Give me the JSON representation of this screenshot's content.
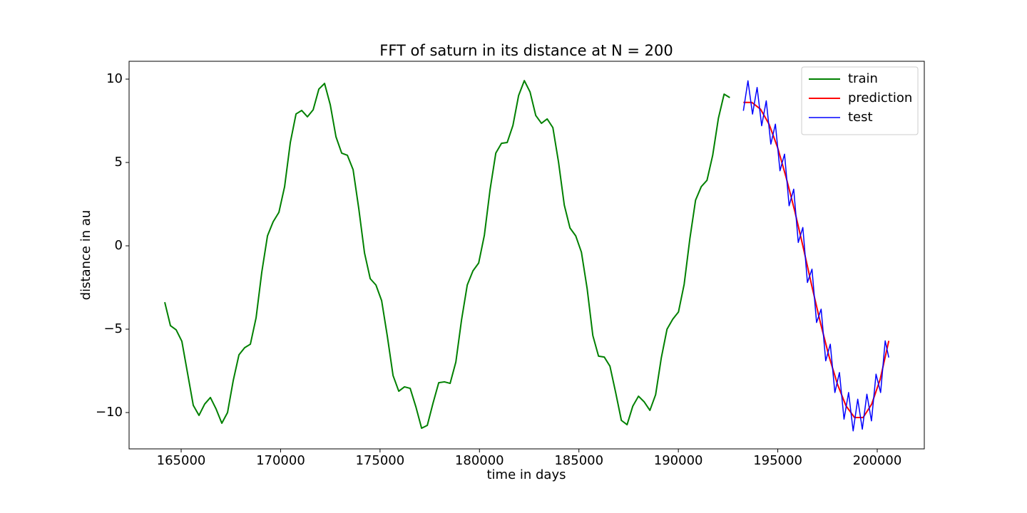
{
  "chart_data": {
    "type": "line",
    "title": "FFT of saturn in its distance at N = 200",
    "xlabel": "time in days",
    "ylabel": "distance in au",
    "xlim": [
      162382,
      202367
    ],
    "ylim": [
      -12.18,
      11.07
    ],
    "xticks": [
      165000,
      170000,
      175000,
      180000,
      185000,
      190000,
      195000,
      200000
    ],
    "yticks": [
      {
        "value": -10,
        "label": "−10"
      },
      {
        "value": -5,
        "label": "−5"
      },
      0,
      5,
      10
    ],
    "legend": "upper right",
    "series": [
      {
        "name": "train",
        "color": "#008000",
        "x": [
          164175,
          164462,
          164749,
          165036,
          165323,
          165610,
          165897,
          166184,
          166471,
          166758,
          167045,
          167332,
          167619,
          167906,
          168193,
          168480,
          168767,
          169054,
          169341,
          169628,
          169915,
          170202,
          170489,
          170776,
          171063,
          171350,
          171637,
          171924,
          172211,
          172498,
          172785,
          173072,
          173359,
          173646,
          173933,
          174220,
          174507,
          174794,
          175081,
          175368,
          175655,
          175942,
          176229,
          176516,
          176803,
          177090,
          177377,
          177664,
          177951,
          178238,
          178525,
          178812,
          179099,
          179386,
          179673,
          179960,
          180247,
          180534,
          180821,
          181108,
          181395,
          181682,
          181969,
          182256,
          182543,
          182830,
          183117,
          183404,
          183691,
          183978,
          184265,
          184552,
          184839,
          185126,
          185413,
          185700,
          185987,
          186274,
          186561,
          186848,
          187135,
          187422,
          187709,
          187996,
          188283,
          188570,
          188857,
          189144,
          189431,
          189718,
          190005,
          190292,
          190579,
          190866,
          191153,
          191440,
          191727,
          192014,
          192301,
          192588
        ],
        "values": [
          -3.38,
          -4.79,
          -5.04,
          -5.73,
          -7.65,
          -9.57,
          -10.17,
          -9.49,
          -9.1,
          -9.79,
          -10.64,
          -10.0,
          -8.08,
          -6.54,
          -6.11,
          -5.9,
          -4.32,
          -1.58,
          0.6,
          1.45,
          2.01,
          3.55,
          6.2,
          7.91,
          8.12,
          7.74,
          8.16,
          9.4,
          9.74,
          8.46,
          6.54,
          5.56,
          5.43,
          4.57,
          2.22,
          -0.43,
          -1.97,
          -2.35,
          -3.29,
          -5.43,
          -7.78,
          -8.72,
          -8.46,
          -8.55,
          -9.66,
          -10.94,
          -10.77,
          -9.44,
          -8.21,
          -8.16,
          -8.25,
          -6.97,
          -4.44,
          -2.35,
          -1.5,
          -1.03,
          0.64,
          3.38,
          5.56,
          6.15,
          6.2,
          7.22,
          9.02,
          9.91,
          9.23,
          7.82,
          7.35,
          7.61,
          7.09,
          5.0,
          2.44,
          1.07,
          0.6,
          -0.38,
          -2.56,
          -5.38,
          -6.62,
          -6.67,
          -7.22,
          -8.8,
          -10.47,
          -10.73,
          -9.62,
          -9.02,
          -9.36,
          -9.87,
          -8.93,
          -6.71,
          -5.0,
          -4.4,
          -3.97,
          -2.31,
          0.43,
          2.74,
          3.55,
          3.93,
          5.43,
          7.65,
          9.1,
          8.89
        ]
      },
      {
        "name": "prediction",
        "color": "#ff0000",
        "x": [
          193270,
          193700,
          194130,
          194560,
          194990,
          195420,
          195850,
          196280,
          196710,
          197140,
          197570,
          198000,
          198430,
          198860,
          199290,
          199720,
          200150,
          200582
        ],
        "values": [
          8.6,
          8.6,
          8.2,
          7.3,
          5.9,
          4.1,
          2.1,
          -0.1,
          -2.4,
          -4.6,
          -6.6,
          -8.3,
          -9.6,
          -10.3,
          -10.3,
          -9.5,
          -8.0,
          -5.7
        ]
      },
      {
        "name": "test",
        "color": "#0000ff",
        "x": [
          193270,
          193500,
          193730,
          193960,
          194190,
          194420,
          194650,
          194880,
          195110,
          195340,
          195570,
          195800,
          196030,
          196260,
          196490,
          196720,
          196950,
          197180,
          197410,
          197640,
          197870,
          198100,
          198330,
          198560,
          198790,
          199020,
          199250,
          199480,
          199710,
          199940,
          200170,
          200400,
          200582
        ],
        "values": [
          8.1,
          9.9,
          7.9,
          9.5,
          7.2,
          8.7,
          6.1,
          7.3,
          4.5,
          5.5,
          2.4,
          3.4,
          0.2,
          1.1,
          -2.2,
          -1.4,
          -4.6,
          -3.8,
          -6.9,
          -5.9,
          -8.8,
          -7.6,
          -10.4,
          -8.8,
          -11.1,
          -9.2,
          -11.0,
          -8.9,
          -10.5,
          -7.7,
          -8.8,
          -5.7,
          -6.7
        ]
      }
    ]
  }
}
